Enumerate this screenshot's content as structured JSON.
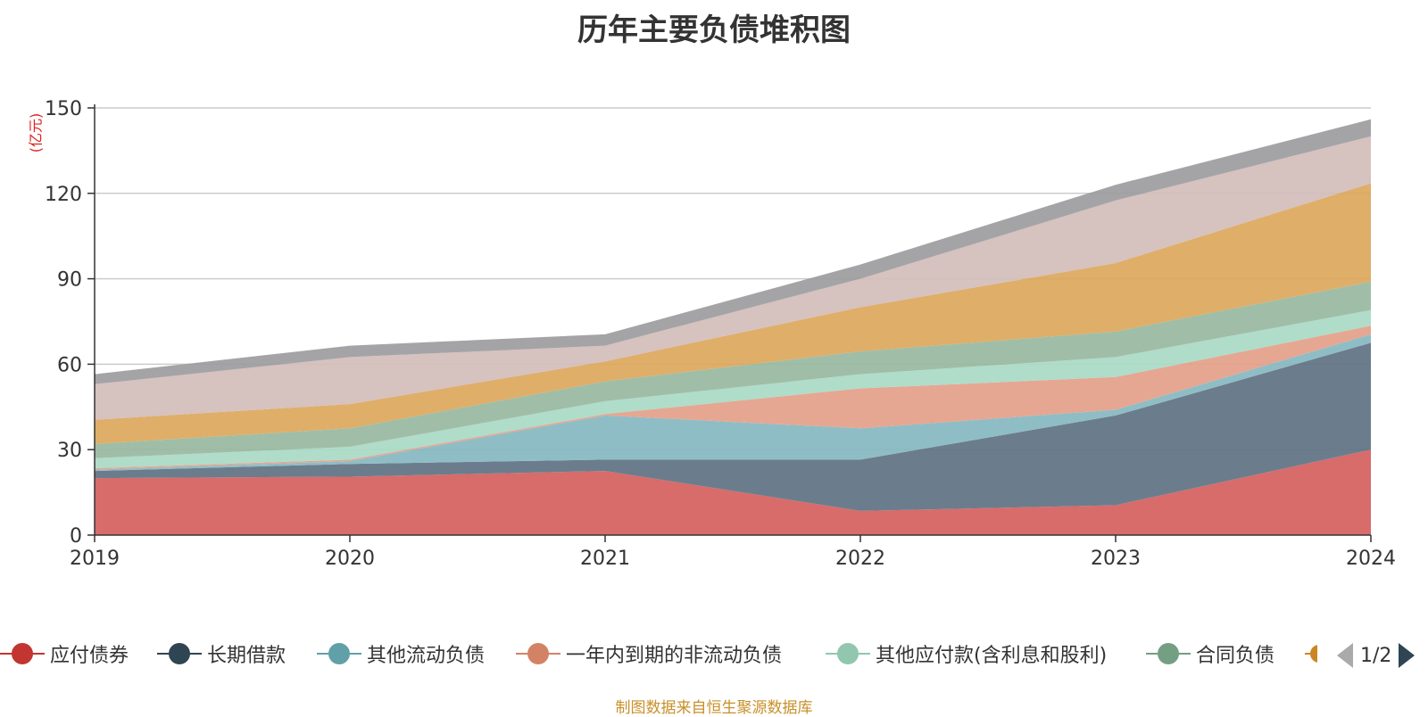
{
  "chart_data": {
    "type": "area",
    "stacked": true,
    "title": "历年主要负债堆积图",
    "unit": "(亿元)",
    "categories": [
      "2019",
      "2020",
      "2021",
      "2022",
      "2023",
      "2024"
    ],
    "ylim": [
      0,
      150
    ],
    "yticks": [
      0,
      30,
      60,
      90,
      120,
      150
    ],
    "grid": true,
    "series": [
      {
        "name": "应付债券",
        "color": "#d4605e",
        "values": [
          20,
          20.5,
          22.5,
          8.5,
          10.5,
          30
        ]
      },
      {
        "name": "长期借款",
        "color": "#5e7282",
        "values": [
          2.5,
          4.5,
          4,
          18,
          31.5,
          37.5
        ]
      },
      {
        "name": "其他流动负债",
        "color": "#85b7c1",
        "values": [
          0.5,
          1,
          15.5,
          11,
          2,
          3
        ]
      },
      {
        "name": "一年内到期的非流动负债",
        "color": "#e39f89",
        "values": [
          0.5,
          0.5,
          0.5,
          14,
          11.5,
          3
        ]
      },
      {
        "name": "其他应付款(含利息和股利)",
        "color": "#a9d9c5",
        "values": [
          3.5,
          4.5,
          4.5,
          5,
          7,
          5.5
        ]
      },
      {
        "name": "合同负债",
        "color": "#98b8a0",
        "values": [
          5,
          6.5,
          7,
          8,
          9,
          10
        ]
      },
      {
        "name": "",
        "color": "#dca75c",
        "values": [
          8.5,
          8.5,
          7,
          15.5,
          24,
          34.5
        ]
      },
      {
        "name": "",
        "color": "#d3bdb8",
        "values": [
          12.5,
          16.5,
          5.5,
          10,
          22,
          16.5
        ]
      },
      {
        "name": "",
        "color": "#9c9c9f",
        "values": [
          3.5,
          4,
          4,
          5,
          5.5,
          6
        ]
      }
    ]
  },
  "legend": {
    "pager_text": "1/2"
  },
  "source_note": "制图数据来自恒生聚源数据库"
}
